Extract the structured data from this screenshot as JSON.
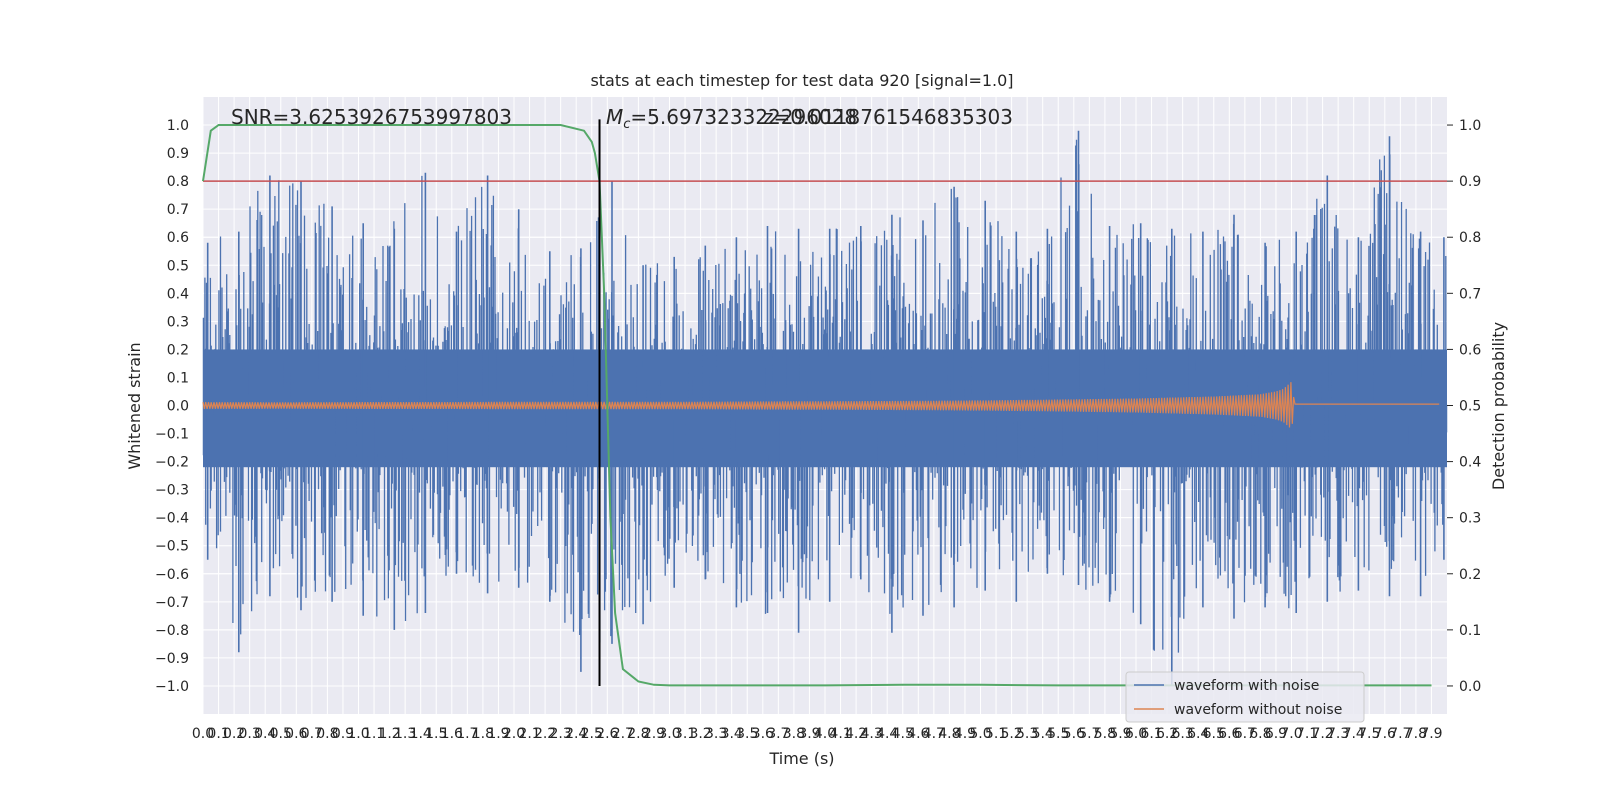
{
  "chart_data": {
    "type": "line",
    "title": "stats at each timestep for test data 920 [signal=1.0]",
    "xlabel": "Time (s)",
    "ylabel_left": "Whitened strain",
    "ylabel_right": "Detection probability",
    "xlim": [
      0.0,
      8.0
    ],
    "ylim_left": [
      -1.1,
      1.1
    ],
    "ylim_right": [
      -0.05,
      1.05
    ],
    "grid": true,
    "x_ticks": [
      "0.0",
      "0.1",
      "0.2",
      "0.3",
      "0.4",
      "0.5",
      "0.6",
      "0.7",
      "0.8",
      "0.9",
      "1.0",
      "1.1",
      "1.2",
      "1.3",
      "1.4",
      "1.5",
      "1.6",
      "1.7",
      "1.8",
      "1.9",
      "2.0",
      "2.1",
      "2.2",
      "2.3",
      "2.4",
      "2.5",
      "2.6",
      "2.7",
      "2.8",
      "2.9",
      "3.0",
      "3.1",
      "3.2",
      "3.3",
      "3.4",
      "3.5",
      "3.6",
      "3.7",
      "3.8",
      "3.9",
      "4.0",
      "4.1",
      "4.2",
      "4.3",
      "4.4",
      "4.5",
      "4.6",
      "4.7",
      "4.8",
      "4.9",
      "5.0",
      "5.1",
      "5.2",
      "5.3",
      "5.4",
      "5.5",
      "5.6",
      "5.7",
      "5.8",
      "5.9",
      "6.0",
      "6.1",
      "6.2",
      "6.3",
      "6.4",
      "6.5",
      "6.6",
      "6.7",
      "6.8",
      "6.9",
      "7.0",
      "7.1",
      "7.2",
      "7.3",
      "7.4",
      "7.5",
      "7.6",
      "7.7",
      "7.8",
      "7.9"
    ],
    "y_ticks_left": [
      "1.0",
      "0.9",
      "0.8",
      "0.7",
      "0.6",
      "0.5",
      "0.4",
      "0.3",
      "0.2",
      "0.1",
      "0.0",
      "−0.1",
      "−0.2",
      "−0.3",
      "−0.4",
      "−0.5",
      "−0.6",
      "−0.7",
      "−0.8",
      "−0.9",
      "−1.0"
    ],
    "y_ticks_right": [
      "1.0",
      "0.9",
      "0.8",
      "0.7",
      "0.6",
      "0.5",
      "0.4",
      "0.3",
      "0.2",
      "0.1",
      "0.0"
    ],
    "annotations": {
      "snr": "SNR=3.6253926753997803",
      "mc_symbol": "M",
      "mc_sub": "c",
      "mc_value": "=5.697323322296028",
      "z_overlap": "z=0.0118761546835303"
    },
    "threshold_right": 0.9,
    "vertical_line_x": 2.55,
    "detection_probability": {
      "x": [
        0.0,
        0.05,
        0.1,
        0.2,
        0.4,
        0.8,
        1.2,
        1.6,
        2.0,
        2.3,
        2.45,
        2.5,
        2.52,
        2.55,
        2.58,
        2.6,
        2.62,
        2.65,
        2.7,
        2.8,
        2.9,
        3.0,
        3.2,
        3.5,
        4.0,
        4.5,
        5.0,
        5.5,
        6.0,
        6.5,
        7.0,
        7.5,
        7.9
      ],
      "values": [
        0.9,
        0.99,
        1.0,
        1.0,
        1.0,
        1.0,
        1.0,
        1.0,
        1.0,
        1.0,
        0.99,
        0.97,
        0.95,
        0.9,
        0.7,
        0.5,
        0.3,
        0.13,
        0.03,
        0.008,
        0.002,
        0.001,
        0.001,
        0.001,
        0.001,
        0.002,
        0.002,
        0.001,
        0.001,
        0.001,
        0.001,
        0.001,
        0.001
      ]
    },
    "noise_envelope": {
      "x": [
        0.0,
        0.2,
        0.4,
        0.6,
        0.8,
        1.0,
        1.2,
        1.4,
        1.6,
        1.8,
        2.0,
        2.2,
        2.4,
        2.6,
        2.8,
        3.0,
        3.2,
        3.4,
        3.6,
        3.8,
        4.0,
        4.2,
        4.4,
        4.6,
        4.8,
        5.0,
        5.2,
        5.4,
        5.6,
        5.8,
        6.0,
        6.2,
        6.4,
        6.6,
        6.8,
        7.0,
        7.2,
        7.4,
        7.6,
        7.8,
        7.95
      ],
      "upper": [
        0.58,
        0.62,
        0.82,
        0.8,
        0.71,
        0.65,
        0.63,
        0.83,
        0.62,
        0.82,
        0.7,
        0.55,
        0.56,
        0.8,
        0.5,
        0.53,
        0.57,
        0.6,
        0.64,
        0.63,
        0.63,
        0.64,
        0.68,
        0.66,
        0.78,
        0.73,
        0.62,
        0.63,
        0.98,
        0.64,
        0.65,
        0.63,
        0.62,
        0.68,
        0.58,
        0.62,
        0.82,
        0.6,
        0.96,
        0.62,
        0.6
      ],
      "lower": [
        -0.55,
        -0.88,
        -0.68,
        -0.73,
        -0.7,
        -0.75,
        -0.8,
        -0.74,
        -0.6,
        -0.67,
        -0.65,
        -0.7,
        -0.95,
        -0.85,
        -0.78,
        -0.65,
        -0.62,
        -0.72,
        -0.74,
        -0.81,
        -0.7,
        -0.62,
        -0.81,
        -0.75,
        -0.72,
        -0.66,
        -0.7,
        -0.6,
        -0.64,
        -0.7,
        -0.78,
        -1.0,
        -0.72,
        -0.76,
        -0.72,
        -0.74,
        -0.7,
        -0.66,
        -0.68,
        -0.68,
        -0.55
      ]
    },
    "clean_waveform": {
      "x": [
        0.0,
        0.5,
        1.0,
        1.5,
        2.0,
        2.5,
        3.0,
        3.5,
        4.0,
        4.5,
        5.0,
        5.5,
        6.0,
        6.5,
        6.8,
        6.9,
        6.95,
        6.98,
        7.0,
        7.02,
        7.05,
        7.95
      ],
      "amplitude": [
        0.012,
        0.011,
        0.012,
        0.012,
        0.013,
        0.013,
        0.013,
        0.014,
        0.015,
        0.016,
        0.018,
        0.021,
        0.025,
        0.032,
        0.04,
        0.05,
        0.06,
        0.075,
        0.085,
        0.005,
        0.005,
        0.005
      ]
    },
    "series": [
      {
        "name": "waveform with noise",
        "color": "#4c72b0"
      },
      {
        "name": "waveform without noise",
        "color": "#dd8452"
      }
    ],
    "colors": {
      "detection_probability": "#55a868",
      "threshold": "#c44e52",
      "vertical_line": "#000000",
      "plot_background": "#eaeaf2"
    },
    "legend_placement": "lower-right"
  }
}
